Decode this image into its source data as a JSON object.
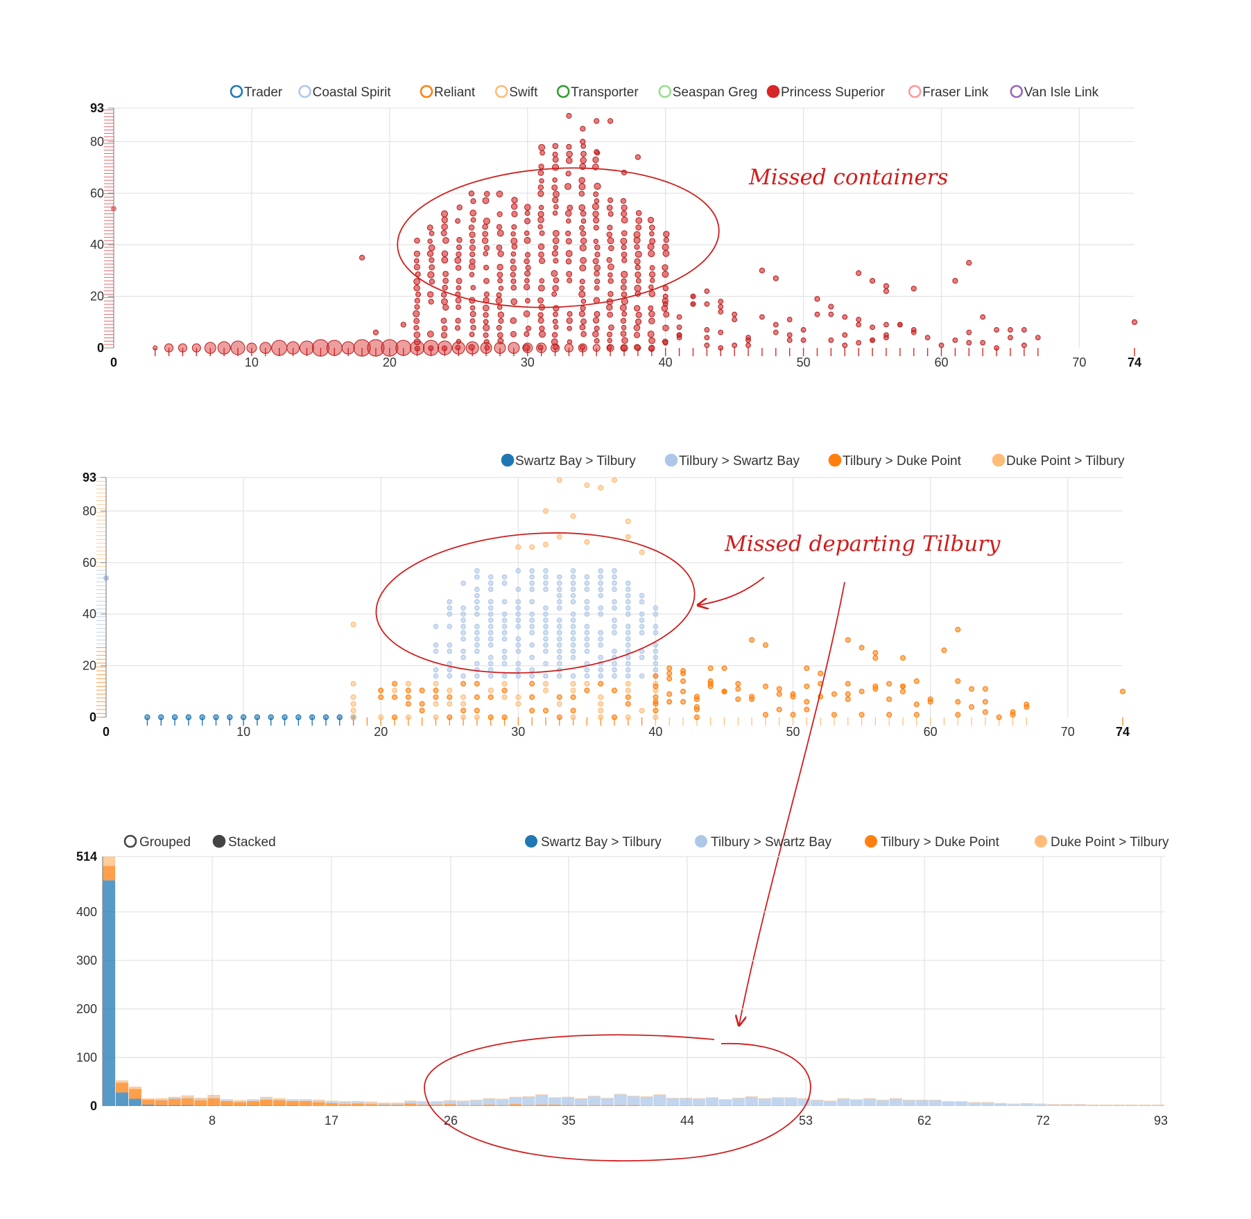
{
  "colors": {
    "red": "#d62728",
    "dark_blue": "#1f77b4",
    "light_blue": "#aec7e8",
    "orange": "#ff7f0e",
    "light_orange": "#ffbb78",
    "green": "#2ca02c",
    "light_green": "#98df8a",
    "pink": "#ff9896",
    "purple": "#9467bd",
    "annotation": "#d01c1c"
  },
  "chart_data": [
    {
      "type": "scatter",
      "title": "",
      "xlabel": "",
      "ylabel": "",
      "xlim": [
        0,
        74
      ],
      "ylim": [
        0,
        93
      ],
      "x_ticks": [
        "0",
        "10",
        "20",
        "30",
        "40",
        "50",
        "60",
        "70",
        "74"
      ],
      "y_ticks": [
        "0",
        "20",
        "40",
        "60",
        "80",
        "93"
      ],
      "grid": true,
      "legend_position": "top",
      "legend": [
        {
          "name": "Trader",
          "color": "#1f77b4",
          "filled": false
        },
        {
          "name": "Coastal Spirit",
          "color": "#aec7e8",
          "filled": false
        },
        {
          "name": "Reliant",
          "color": "#ff7f0e",
          "filled": false
        },
        {
          "name": "Swift",
          "color": "#ffbb78",
          "filled": false
        },
        {
          "name": "Transporter",
          "color": "#2ca02c",
          "filled": false
        },
        {
          "name": "Seaspan Greg",
          "color": "#98df8a",
          "filled": false
        },
        {
          "name": "Princess Superior",
          "color": "#d62728",
          "filled": true
        },
        {
          "name": "Fraser Link",
          "color": "#ff9896",
          "filled": false
        },
        {
          "name": "Van Isle Link",
          "color": "#9467bd",
          "filled": false
        }
      ],
      "series": [
        {
          "name": "Princess Superior",
          "description": "dense cluster of points between x≈22–40 spanning y≈0–93, scattered points up to x=74 with y≤35, large bubbles along y=0 from x≈3–40"
        }
      ],
      "annotation": "Missed containers"
    },
    {
      "type": "scatter",
      "title": "",
      "xlabel": "",
      "ylabel": "",
      "xlim": [
        0,
        74
      ],
      "ylim": [
        0,
        93
      ],
      "x_ticks": [
        "0",
        "10",
        "20",
        "30",
        "40",
        "50",
        "60",
        "70",
        "74"
      ],
      "y_ticks": [
        "0",
        "20",
        "40",
        "60",
        "80",
        "93"
      ],
      "grid": true,
      "legend_position": "top-right",
      "legend": [
        {
          "name": "Swartz Bay > Tilbury",
          "color": "#1f77b4",
          "filled": true
        },
        {
          "name": "Tilbury > Swartz Bay",
          "color": "#aec7e8",
          "filled": true
        },
        {
          "name": "Tilbury > Duke Point",
          "color": "#ff7f0e",
          "filled": true
        },
        {
          "name": "Duke Point > Tilbury",
          "color": "#ffbb78",
          "filled": true
        }
      ],
      "annotation": "Missed departing Tilbury"
    },
    {
      "type": "bar",
      "title": "",
      "xlabel": "",
      "ylabel": "",
      "stacked": true,
      "ylim": [
        0,
        514
      ],
      "y_ticks": [
        "0",
        "100",
        "200",
        "300",
        "400",
        "514"
      ],
      "x_ticks": [
        "8",
        "17",
        "26",
        "35",
        "44",
        "53",
        "62",
        "72",
        "93"
      ],
      "grid": true,
      "legend_position": "top-right",
      "mode_options": [
        {
          "name": "Grouped",
          "selected": false
        },
        {
          "name": "Stacked",
          "selected": true
        }
      ],
      "legend": [
        {
          "name": "Swartz Bay > Tilbury",
          "color": "#1f77b4"
        },
        {
          "name": "Tilbury > Swartz Bay",
          "color": "#aec7e8"
        },
        {
          "name": "Tilbury > Duke Point",
          "color": "#ff7f0e"
        },
        {
          "name": "Duke Point > Tilbury",
          "color": "#ffbb78"
        }
      ],
      "categories": [
        0,
        1,
        2,
        3,
        4,
        5,
        6,
        7,
        8,
        9,
        10,
        11,
        12,
        13,
        14,
        15,
        16,
        17,
        18,
        19,
        20,
        21,
        22,
        23,
        24,
        25,
        26,
        27,
        28,
        29,
        30,
        31,
        32,
        33,
        34,
        35,
        36,
        37,
        38,
        39,
        40,
        41,
        42,
        43,
        44,
        45,
        46,
        47,
        48,
        49,
        50,
        51,
        52,
        53,
        54,
        55,
        56,
        57,
        58,
        59,
        60,
        61,
        62,
        63,
        64,
        65,
        66,
        67,
        68,
        69,
        70,
        71,
        72,
        73,
        74,
        75,
        76,
        77,
        78,
        79,
        80
      ],
      "series": [
        {
          "name": "Swartz Bay > Tilbury",
          "values": [
            465,
            28,
            15,
            3,
            2,
            2,
            2,
            1,
            1,
            1,
            1,
            1,
            1,
            1,
            1,
            0,
            0,
            0,
            0,
            0,
            0,
            0,
            0,
            0,
            0,
            0,
            0,
            0,
            0,
            0,
            0,
            0,
            0,
            0,
            0,
            0,
            0,
            0,
            0,
            0,
            0,
            0,
            0,
            0,
            0,
            0,
            0,
            0,
            0,
            0,
            0,
            0,
            0,
            0,
            0,
            0,
            0,
            0,
            0,
            0,
            0,
            0,
            0,
            0,
            0,
            0,
            0,
            0,
            0,
            0,
            0,
            0,
            0,
            0,
            0,
            0,
            0,
            0,
            0,
            0,
            0
          ]
        },
        {
          "name": "Tilbury > Swartz Bay",
          "values": [
            0,
            0,
            0,
            1,
            2,
            2,
            3,
            3,
            3,
            2,
            2,
            2,
            3,
            2,
            2,
            2,
            3,
            3,
            4,
            3,
            3,
            3,
            3,
            5,
            6,
            6,
            7,
            8,
            10,
            12,
            12,
            14,
            17,
            20,
            14,
            16,
            13,
            18,
            14,
            22,
            18,
            18,
            22,
            15,
            15,
            14,
            16,
            12,
            15,
            18,
            14,
            16,
            16,
            15,
            12,
            10,
            15,
            13,
            15,
            12,
            15,
            12,
            12,
            12,
            9,
            9,
            7,
            7,
            5,
            4,
            5,
            4,
            3,
            3,
            3,
            2,
            2,
            2,
            2,
            2,
            2
          ]
        },
        {
          "name": "Tilbury > Duke Point",
          "values": [
            30,
            20,
            20,
            10,
            10,
            13,
            14,
            11,
            15,
            9,
            7,
            9,
            12,
            11,
            9,
            10,
            8,
            6,
            4,
            5,
            4,
            3,
            3,
            5,
            3,
            3,
            4,
            2,
            2,
            3,
            2,
            4,
            2,
            3,
            3,
            2,
            2,
            2,
            2,
            2,
            2,
            1,
            1,
            1,
            1,
            1,
            1,
            1,
            1,
            1,
            1,
            1,
            1,
            0,
            0,
            0,
            0,
            0,
            0,
            0,
            0,
            0,
            0,
            0,
            0,
            0,
            0,
            0,
            0,
            0,
            0,
            0,
            0,
            0,
            0,
            0,
            0,
            0,
            0,
            0,
            0
          ]
        },
        {
          "name": "Duke Point > Tilbury",
          "values": [
            19,
            5,
            5,
            2,
            2,
            2,
            3,
            2,
            4,
            2,
            2,
            2,
            3,
            2,
            2,
            2,
            2,
            2,
            2,
            2,
            2,
            1,
            1,
            1,
            1,
            1,
            1,
            1,
            1,
            1,
            1,
            1,
            1,
            1,
            1,
            1,
            1,
            1,
            1,
            1,
            1,
            1,
            1,
            1,
            1,
            1,
            1,
            1,
            1,
            1,
            1,
            1,
            1,
            1,
            1,
            1,
            1,
            1,
            1,
            1,
            1,
            1,
            1,
            1,
            1,
            1,
            1,
            1,
            1,
            1,
            1,
            1,
            1,
            1,
            1,
            1,
            1,
            1,
            1,
            1,
            1
          ]
        }
      ]
    }
  ]
}
